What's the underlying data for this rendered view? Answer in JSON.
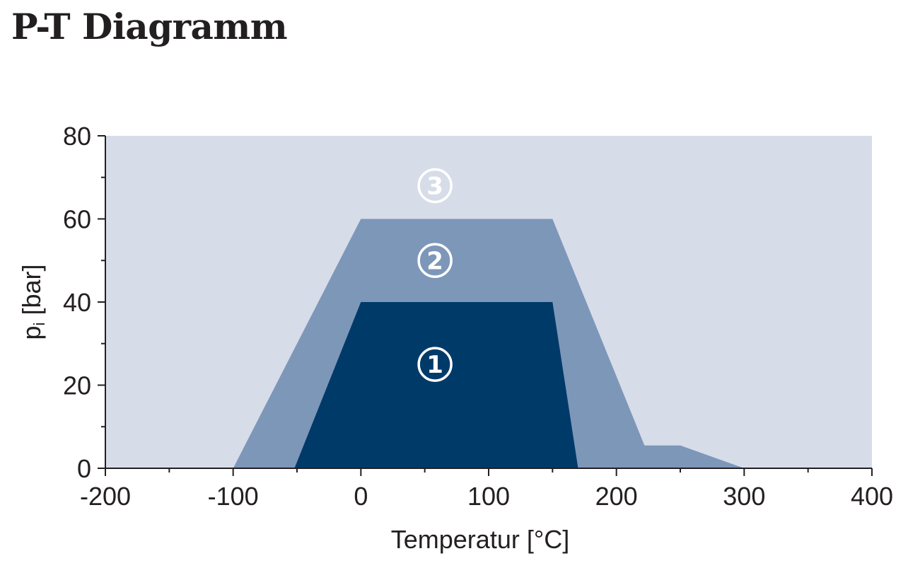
{
  "title": "P-T Diagramm",
  "chart_data": {
    "type": "area",
    "xlabel": "Temperatur [°C]",
    "ylabel": "pi [bar]",
    "ylabel_main": "p",
    "ylabel_sub": "i",
    "ylabel_rest": " [bar]",
    "xlim": [
      -200,
      400
    ],
    "ylim": [
      0,
      80
    ],
    "x_ticks": [
      -200,
      -100,
      0,
      100,
      200,
      300,
      400
    ],
    "x_tick_labels": [
      "-200",
      "-100",
      "0",
      "100",
      "200",
      "300",
      "400"
    ],
    "y_ticks": [
      0,
      20,
      40,
      60,
      80
    ],
    "y_tick_labels": [
      "0",
      "20",
      "40",
      "60",
      "80"
    ],
    "grid": false,
    "colors": {
      "background": "#d7dce9",
      "region2": "#7d97b9",
      "region1": "#003a69",
      "axis": "#231f20",
      "label_light": "#ffffff"
    },
    "regions": [
      {
        "label": "2",
        "polygon": [
          [
            -100,
            0
          ],
          [
            0,
            60
          ],
          [
            150,
            60
          ],
          [
            222,
            5.5
          ],
          [
            250,
            5.5
          ],
          [
            300,
            0
          ]
        ]
      },
      {
        "label": "1",
        "polygon": [
          [
            -52,
            0
          ],
          [
            0,
            40
          ],
          [
            150,
            40
          ],
          [
            170,
            0
          ]
        ]
      }
    ],
    "region_labels": [
      {
        "text": "1",
        "x": 58,
        "y": 25
      },
      {
        "text": "2",
        "x": 58,
        "y": 50
      },
      {
        "text": "3",
        "x": 58,
        "y": 68
      }
    ]
  }
}
